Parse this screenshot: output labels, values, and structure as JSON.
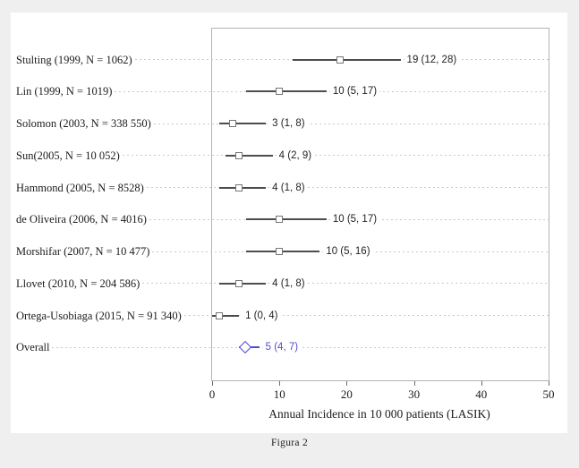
{
  "figure": {
    "caption": "Figura 2"
  },
  "chart_data": {
    "type": "forest",
    "title": "",
    "xlabel": "Annual Incidence in 10 000 patients (LASIK)",
    "xlim": [
      0,
      50
    ],
    "xticks": [
      "0",
      "10",
      "20",
      "30",
      "40",
      "50"
    ],
    "grid": "dashed horizontal row guides",
    "legend": "none",
    "studies": [
      {
        "label": "Stulting (1999, N = 1062)",
        "estimate": 19,
        "ci_low": 12,
        "ci_high": 28,
        "annotation": "19 (12, 28)",
        "is_summary": false
      },
      {
        "label": "Lin (1999, N = 1019)",
        "estimate": 10,
        "ci_low": 5,
        "ci_high": 17,
        "annotation": "10 (5, 17)",
        "is_summary": false
      },
      {
        "label": "Solomon (2003, N = 338 550)",
        "estimate": 3,
        "ci_low": 1,
        "ci_high": 8,
        "annotation": "3 (1, 8)",
        "is_summary": false
      },
      {
        "label": "Sun(2005, N = 10 052)",
        "estimate": 4,
        "ci_low": 2,
        "ci_high": 9,
        "annotation": "4 (2, 9)",
        "is_summary": false
      },
      {
        "label": "Hammond (2005, N = 8528)",
        "estimate": 4,
        "ci_low": 1,
        "ci_high": 8,
        "annotation": "4 (1, 8)",
        "is_summary": false
      },
      {
        "label": "de Oliveira (2006, N = 4016)",
        "estimate": 10,
        "ci_low": 5,
        "ci_high": 17,
        "annotation": "10 (5, 17)",
        "is_summary": false
      },
      {
        "label": "Morshifar (2007, N = 10 477)",
        "estimate": 10,
        "ci_low": 5,
        "ci_high": 16,
        "annotation": "10 (5, 16)",
        "is_summary": false
      },
      {
        "label": "Llovet (2010, N = 204 586)",
        "estimate": 4,
        "ci_low": 1,
        "ci_high": 8,
        "annotation": "4 (1, 8)",
        "is_summary": false
      },
      {
        "label": "Ortega-Usobiaga (2015, N = 91 340)",
        "estimate": 1,
        "ci_low": 0,
        "ci_high": 4,
        "annotation": "1 (0, 4)",
        "is_summary": false
      },
      {
        "label": "Overall",
        "estimate": 5,
        "ci_low": 4,
        "ci_high": 7,
        "annotation": "5 (4, 7)",
        "is_summary": true
      }
    ],
    "colors": {
      "study_ci_line": "#4d4d4d",
      "marker_border": "#767676",
      "summary_accent": "#5349d8",
      "grid_dash": "#c9c9c9",
      "plot_border": "#b3b3b3",
      "text": "#1b1b1b",
      "panel_background": "#ffffff",
      "page_background": "#efefef"
    }
  }
}
